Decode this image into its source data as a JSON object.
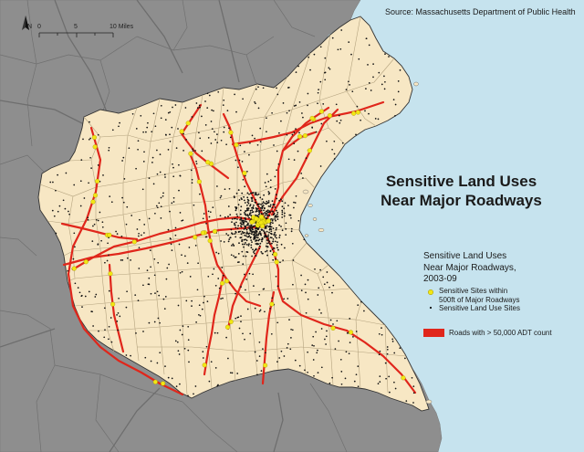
{
  "source": "Source: Massachusetts Department of Public Health",
  "title": {
    "line1": "Sensitive Land Uses",
    "line2": "Near Major Roadways"
  },
  "legend": {
    "title_line1": "Sensitive Land Uses",
    "title_line2": "Near Major Roadways,",
    "title_line3": "2003-09",
    "item_sites_500ft_line1": "Sensitive Sites within",
    "item_sites_500ft_line2": "500ft of Major Roadways",
    "item_sites": "Sensitive Land Use Sites",
    "item_roads": "Roads with > 50,000 ADT count"
  },
  "scale_bar": {
    "label_0": "0",
    "label_5": "5",
    "label_10": "10 Miles"
  },
  "north_arrow_label": "N",
  "colors": {
    "water": "#c6e3ee",
    "outside_land": "#8c8c8c",
    "region": "#f7e7c4",
    "town_border": "#b8a888",
    "roads_major": "#e0261b",
    "sensitive_sites_near_roads": "#f2e614",
    "sensitive_sites": "#111111"
  }
}
